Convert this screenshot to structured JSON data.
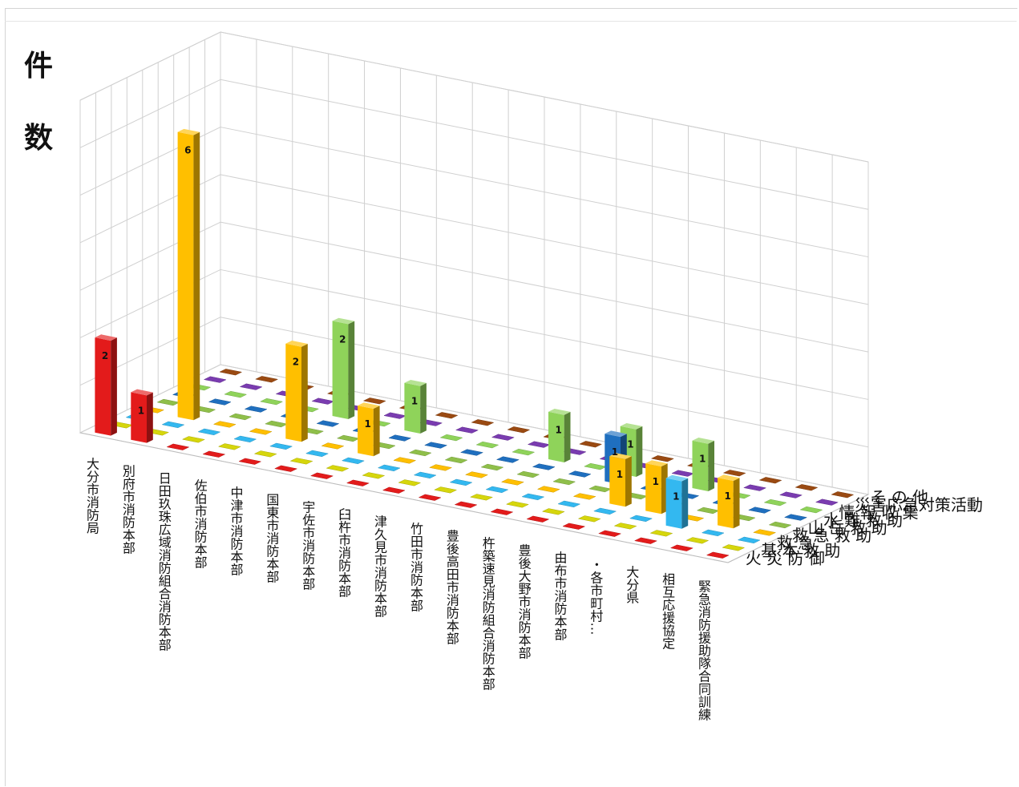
{
  "y_title": [
    "件",
    "数"
  ],
  "chart_data": {
    "type": "bar",
    "subtype": "3d-column",
    "categories": [
      "大分市消防局",
      "別府市消防本部",
      "日田玖珠広域消防組合消防本部",
      "佐伯市消防本部",
      "中津市消防本部",
      "国東市消防本部",
      "宇佐市消防本部",
      "臼杵市消防本部",
      "津久見市消防本部",
      "竹田市消防本部",
      "豊後高田市消防本部",
      "杵築速見消防組合消防本部",
      "豊後大野市消防本部",
      "由布市消防本部",
      "・各市町村…",
      "大分県",
      "相互応援協定",
      "緊急消防援助隊合同訓練"
    ],
    "series": [
      {
        "name": "火災防御",
        "values": [
          2,
          1,
          0,
          0,
          0,
          0,
          0,
          0,
          0,
          0,
          0,
          0,
          0,
          0,
          0,
          0,
          0,
          0
        ]
      },
      {
        "name": "基本救助",
        "values": [
          0,
          0,
          0,
          0,
          0,
          0,
          0,
          0,
          0,
          0,
          0,
          0,
          0,
          0,
          0,
          0,
          0,
          0
        ]
      },
      {
        "name": "救急",
        "values": [
          0,
          0,
          0,
          0,
          0,
          0,
          0,
          0,
          0,
          0,
          0,
          0,
          0,
          0,
          0,
          1,
          0,
          0
        ]
      },
      {
        "name": "救急救助",
        "values": [
          0,
          6,
          0,
          0,
          2,
          0,
          1,
          0,
          0,
          0,
          0,
          0,
          0,
          1,
          1,
          0,
          1,
          0
        ]
      },
      {
        "name": "山岳救助",
        "values": [
          0,
          0,
          0,
          0,
          0,
          0,
          0,
          0,
          0,
          0,
          0,
          0,
          0,
          0,
          0,
          0,
          0,
          0
        ]
      },
      {
        "name": "水難救助",
        "values": [
          0,
          0,
          0,
          0,
          0,
          0,
          0,
          0,
          0,
          0,
          0,
          0,
          1,
          0,
          0,
          0,
          0,
          0
        ]
      },
      {
        "name": "情報収集",
        "values": [
          0,
          0,
          0,
          0,
          2,
          0,
          1,
          0,
          0,
          0,
          1,
          0,
          1,
          0,
          1,
          0,
          0,
          0
        ]
      },
      {
        "name": "災害応急対策活動",
        "values": [
          0,
          0,
          0,
          0,
          0,
          0,
          0,
          0,
          0,
          0,
          0,
          0,
          0,
          0,
          0,
          0,
          0,
          0
        ]
      },
      {
        "name": "その他",
        "values": [
          0,
          0,
          0,
          0,
          0,
          0,
          0,
          0,
          0,
          0,
          0,
          0,
          0,
          0,
          0,
          0,
          0,
          0
        ]
      }
    ],
    "row_labels": [
      "火 災 防 御",
      "基 本 救 助",
      "救 急",
      "救 急 救 助",
      "山 岳 救 助",
      "水 難 救 助",
      "情 報 収 集",
      "災害応急対策活動",
      "そ の 他"
    ],
    "colors": [
      "#e31b1b",
      "#d6d60c",
      "#1ea3d8",
      "#ffbf00",
      "#8fbf4a",
      "#1f6fbf",
      "#3cb060",
      "#7a3cb0",
      "#9a4a12"
    ],
    "colors_display_bars": {
      "救急": "#33b8f0",
      "水難救助": "#1f6fbf",
      "情報収集": "#8fd35a"
    },
    "zlim": [
      0,
      7
    ],
    "grid": true
  }
}
